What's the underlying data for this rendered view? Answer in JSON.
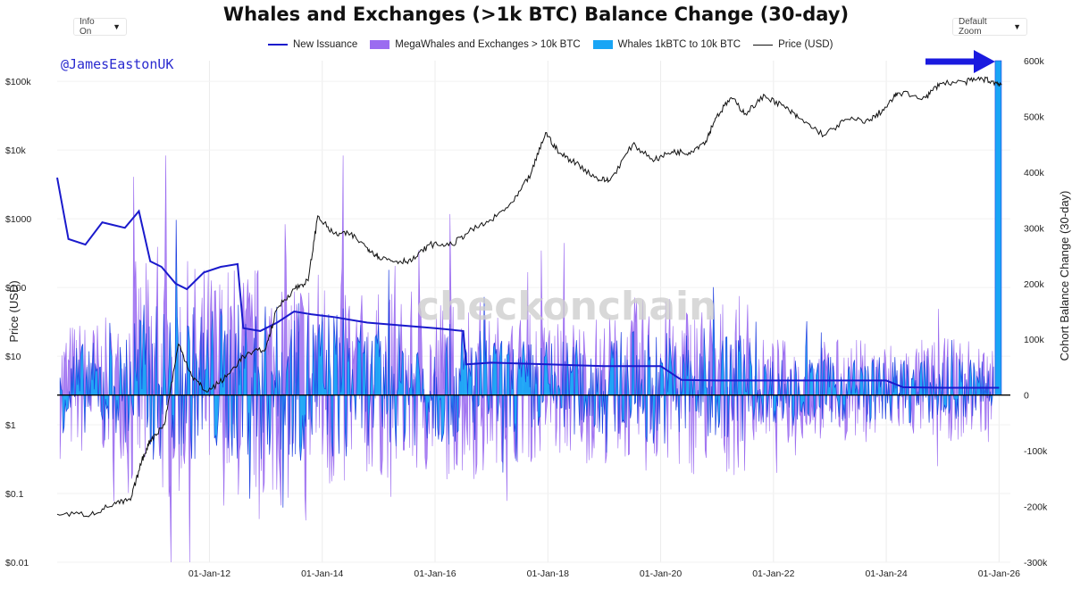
{
  "controls": {
    "info_label": "Info On",
    "zoom_label": "Default Zoom"
  },
  "handle": "@JamesEastonUK",
  "watermark": "checkonchain",
  "colors": {
    "new_issuance": "#1a1acc",
    "mega": "#9b6cf0",
    "whales": "#19a5f5",
    "price": "#111111",
    "arrow": "#1a1adf"
  },
  "icons": {
    "caret": "caret-down-icon",
    "arrow": "arrow-right-icon"
  },
  "chart_data": {
    "type": "area",
    "title": "Whales and Exchanges (>1k BTC) Balance Change (30-day)",
    "y_left_label": "Price (USD)",
    "y_right_label": "Cohort Balance Change (30-day)",
    "y_left_scale": "log",
    "y_left_range": [
      0.01,
      200000
    ],
    "y_left_ticks": [
      "$100k",
      "$10k",
      "$1000",
      "$100",
      "$10",
      "$1",
      "$0.1",
      "$0.01"
    ],
    "y_left_tick_values": [
      100000,
      10000,
      1000,
      100,
      10,
      1,
      0.1,
      0.01
    ],
    "y_right_range": [
      -300000,
      600000
    ],
    "y_right_ticks": [
      "600k",
      "500k",
      "400k",
      "300k",
      "200k",
      "100k",
      "0",
      "-100k",
      "-200k",
      "-300k"
    ],
    "y_right_tick_values": [
      600000,
      500000,
      400000,
      300000,
      200000,
      100000,
      0,
      -100000,
      -200000,
      -300000
    ],
    "x_range": [
      2009.3,
      2026.2
    ],
    "x_ticks": [
      "01-Jan-12",
      "01-Jan-14",
      "01-Jan-16",
      "01-Jan-18",
      "01-Jan-20",
      "01-Jan-22",
      "01-Jan-24",
      "01-Jan-26"
    ],
    "x_tick_values": [
      2012,
      2014,
      2016,
      2018,
      2020,
      2022,
      2024,
      2026
    ],
    "legend": [
      "New Issuance",
      "MegaWhales and Exchanges > 10k BTC",
      "Whales 1kBTC to 10k BTC",
      "Price (USD)"
    ],
    "legend_position": "top",
    "grid": true,
    "series": [
      {
        "name": "Price (USD)",
        "axis": "left",
        "style": "line",
        "x": [
          2009.3,
          2009.9,
          2010.3,
          2010.6,
          2010.8,
          2010.95,
          2011.2,
          2011.45,
          2011.7,
          2011.95,
          2012.3,
          2012.6,
          2013.0,
          2013.2,
          2013.5,
          2013.75,
          2013.92,
          2014.2,
          2014.5,
          2014.8,
          2015.0,
          2015.3,
          2015.6,
          2015.9,
          2016.3,
          2016.6,
          2017.0,
          2017.4,
          2017.7,
          2017.96,
          2018.2,
          2018.5,
          2018.88,
          2019.1,
          2019.5,
          2019.9,
          2020.2,
          2020.5,
          2020.8,
          2020.97,
          2021.25,
          2021.5,
          2021.85,
          2022.2,
          2022.45,
          2022.9,
          2023.3,
          2023.7,
          2024.0,
          2024.2,
          2024.7,
          2024.95,
          2025.4,
          2025.7,
          2025.95,
          2026.05
        ],
        "y": [
          0.05,
          0.05,
          0.07,
          0.08,
          0.3,
          0.6,
          1,
          15,
          5,
          3,
          5,
          10,
          13,
          50,
          95,
          125,
          1100,
          600,
          600,
          380,
          280,
          240,
          250,
          420,
          420,
          650,
          950,
          1800,
          4500,
          18000,
          9000,
          6500,
          3800,
          3600,
          12000,
          7200,
          9500,
          9200,
          13500,
          29000,
          58000,
          34000,
          62000,
          42000,
          29000,
          16500,
          28000,
          26500,
          42000,
          68000,
          58000,
          94000,
          98000,
          110000,
          95000,
          90000
        ]
      },
      {
        "name": "New Issuance",
        "axis": "right",
        "style": "line",
        "x": [
          2009.3,
          2009.5,
          2009.8,
          2010.1,
          2010.5,
          2010.75,
          2010.95,
          2011.15,
          2011.4,
          2011.6,
          2011.9,
          2012.2,
          2012.5,
          2012.6,
          2012.9,
          2013.2,
          2013.5,
          2013.8,
          2014.2,
          2014.8,
          2015.4,
          2016.0,
          2016.5,
          2016.55,
          2017.0,
          2018.0,
          2019.0,
          2020.0,
          2020.37,
          2021.0,
          2022.0,
          2023.0,
          2024.0,
          2024.3,
          2025.0,
          2026.0
        ],
        "x_note": "",
        "y": [
          390000,
          280000,
          270000,
          310000,
          300000,
          330000,
          240000,
          230000,
          200000,
          190000,
          220000,
          230000,
          235000,
          120000,
          115000,
          130000,
          150000,
          145000,
          140000,
          130000,
          125000,
          120000,
          115000,
          55000,
          58000,
          55000,
          52000,
          52000,
          27000,
          26000,
          26000,
          26000,
          26000,
          14000,
          13000,
          13000
        ]
      }
    ],
    "cohort_summary": {
      "MegaWhales and Exchanges > 10k BTC": {
        "axis": "right",
        "style": "area",
        "max": 430000,
        "min": -300000
      },
      "Whales 1kBTC to 10k BTC": {
        "axis": "right",
        "style": "area",
        "max": 600000,
        "min": -270000,
        "final_spike": 600000
      }
    }
  }
}
